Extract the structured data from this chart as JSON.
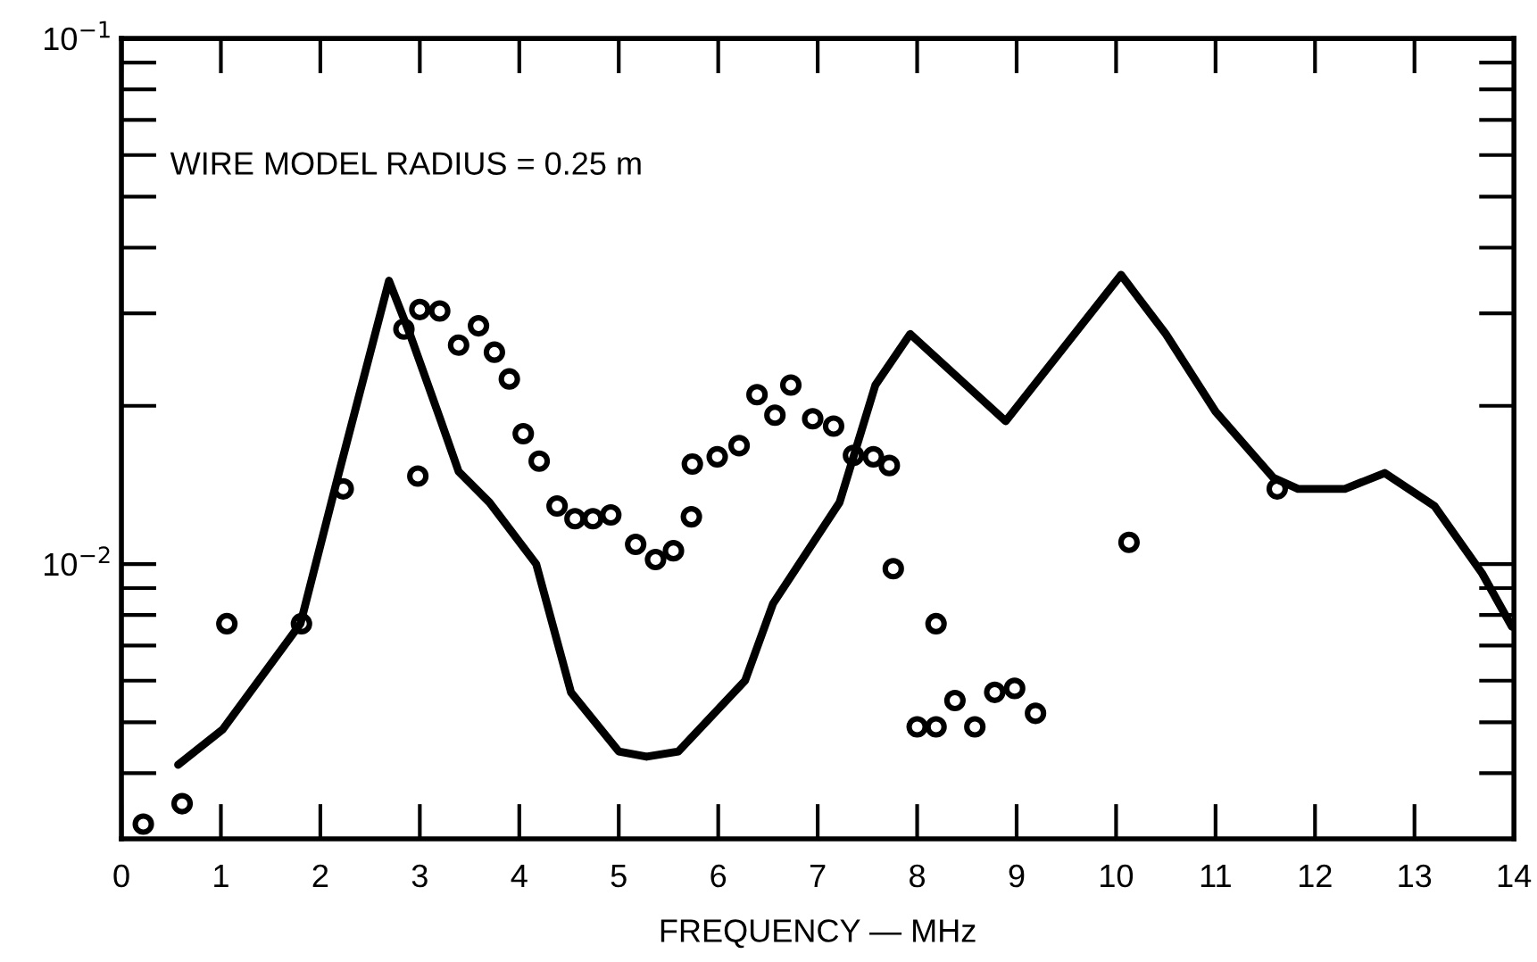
{
  "chart_data": {
    "type": "scatter",
    "xlabel": "FREQUENCY — MHz",
    "annotations": [
      "WIRE MODEL RADIUS = 0.25 m"
    ],
    "log": "y",
    "grid": false,
    "xlim": [
      0,
      14
    ],
    "xticks": [
      0,
      1,
      2,
      3,
      4,
      5,
      6,
      7,
      8,
      9,
      10,
      11,
      12,
      13,
      14
    ],
    "ylim": [
      0.003,
      0.1
    ],
    "yticks": [
      {
        "value": 0.01,
        "label": "10$^{−2}$"
      },
      {
        "value": 0.1,
        "label": "10$^{−1}$"
      }
    ],
    "series": [
      {
        "type": "line",
        "color": "#000000",
        "line_style": "solid",
        "marker": "none",
        "x": [
          0.57,
          1.02,
          1.8,
          2.19,
          2.69,
          2.9,
          3.2,
          3.39,
          3.7,
          4.17,
          4.52,
          5.0,
          5.28,
          5.6,
          6.27,
          6.55,
          7.22,
          7.58,
          7.93,
          8.89,
          10.05,
          10.5,
          11.0,
          11.58,
          11.83,
          12.3,
          12.7,
          13.2,
          13.68,
          13.98
        ],
        "values": [
          0.00415,
          0.00485,
          0.0077,
          0.015,
          0.0346,
          0.0274,
          0.019,
          0.015,
          0.0131,
          0.01,
          0.0057,
          0.0044,
          0.0043,
          0.0044,
          0.006,
          0.0084,
          0.0131,
          0.0219,
          0.0274,
          0.0187,
          0.0355,
          0.0274,
          0.0195,
          0.0146,
          0.0139,
          0.0139,
          0.0149,
          0.0129,
          0.0096,
          0.0076
        ]
      },
      {
        "color": "#000000",
        "marker": "circle",
        "x": [
          0.22,
          0.61,
          1.06,
          1.81,
          2.23,
          2.98,
          2.84,
          3.0,
          3.2,
          3.39,
          3.59,
          3.75,
          3.9,
          4.04,
          4.2,
          4.38,
          4.56,
          4.74,
          4.92,
          5.17,
          5.37,
          5.55,
          5.73,
          5.74,
          5.99,
          6.21,
          6.39,
          6.57,
          6.73,
          6.95,
          7.16,
          7.36,
          7.56,
          7.72,
          7.76,
          8.19,
          8.0,
          8.19,
          8.38,
          8.58,
          8.78,
          8.98,
          9.19,
          10.13,
          11.62
        ],
        "values": [
          0.0032,
          0.0035,
          0.0077,
          0.0077,
          0.0139,
          0.0147,
          0.028,
          0.0305,
          0.0303,
          0.0261,
          0.0284,
          0.0253,
          0.0225,
          0.0177,
          0.0157,
          0.0129,
          0.0122,
          0.0122,
          0.0124,
          0.0109,
          0.0102,
          0.0106,
          0.0123,
          0.0155,
          0.016,
          0.0168,
          0.021,
          0.0192,
          0.0219,
          0.0189,
          0.0183,
          0.0161,
          0.016,
          0.0154,
          0.0098,
          0.0077,
          0.0049,
          0.0049,
          0.0055,
          0.0049,
          0.0057,
          0.0058,
          0.0052,
          0.011,
          0.0139
        ]
      }
    ]
  }
}
